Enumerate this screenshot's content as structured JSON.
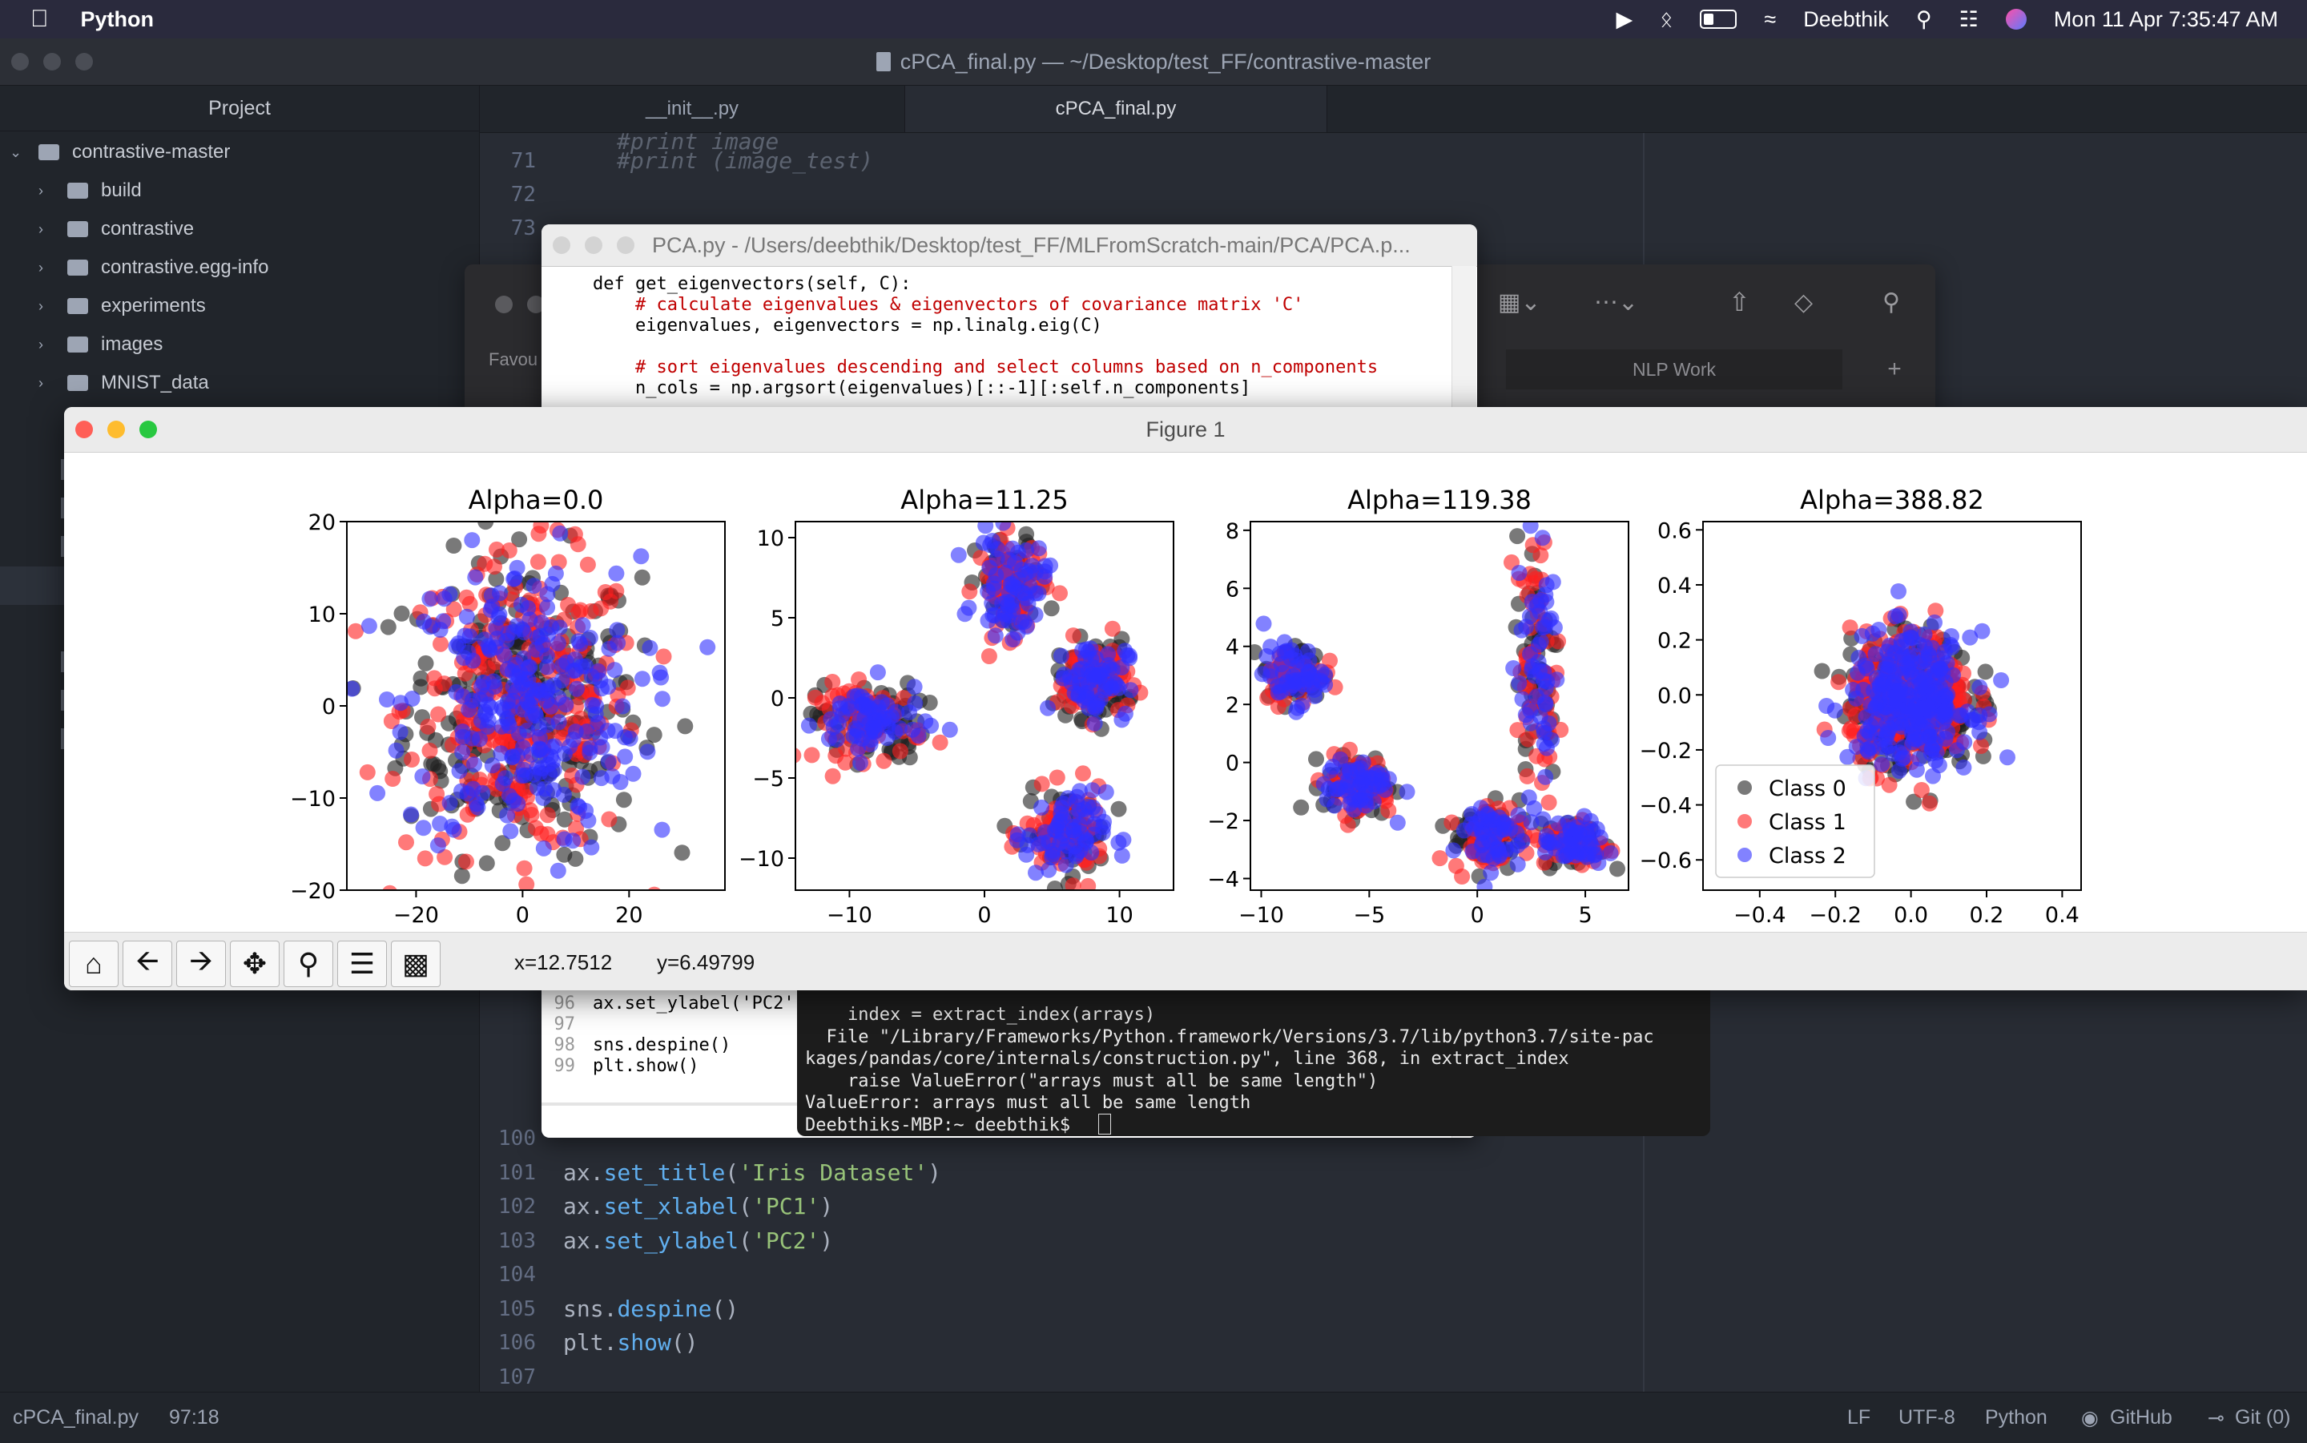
{
  "menubar": {
    "app_name": "Python",
    "user": "Deebthik",
    "datetime": "Mon 11 Apr  7:35:47 AM"
  },
  "atom": {
    "window_title": "cPCA_final.py — ~/Desktop/test_FF/contrastive-master",
    "sidebar_header": "Project",
    "root_folder": "contrastive-master",
    "folders": [
      "build",
      "contrastive",
      "contrastive.egg-info",
      "experiments",
      "images",
      "MNIST_data"
    ],
    "tabs": [
      "__init__.py",
      "cPCA_final.py"
    ],
    "top_lines": [
      {
        "num": "71",
        "code": "#print (image_test)"
      },
      {
        "num": "72",
        "code": ""
      },
      {
        "num": "73",
        "code": ""
      }
    ],
    "bottom_lines": [
      {
        "num": "100",
        "code": ""
      },
      {
        "num": "101",
        "code": "ax.set_title('Iris Dataset')"
      },
      {
        "num": "102",
        "code": "ax.set_xlabel('PC1')"
      },
      {
        "num": "103",
        "code": "ax.set_ylabel('PC2')"
      },
      {
        "num": "104",
        "code": ""
      },
      {
        "num": "105",
        "code": "sns.despine()"
      },
      {
        "num": "106",
        "code": "plt.show()"
      },
      {
        "num": "107",
        "code": ""
      }
    ],
    "status": {
      "file": "cPCA_final.py",
      "cursor": "97:18",
      "line_ending": "LF",
      "encoding": "UTF-8",
      "grammar": "Python",
      "github": "GitHub",
      "git": "Git (0)"
    }
  },
  "pca_window": {
    "title": "PCA.py - /Users/deebthik/Desktop/test_FF/MLFromScratch-main/PCA/PCA.p...",
    "lines": [
      "def get_eigenvectors(self, C):",
      "    # calculate eigenvalues & eigenvectors of covariance matrix 'C'",
      "    eigenvalues, eigenvectors = np.linalg.eig(C)",
      "",
      "    # sort eigenvalues descending and select columns based on n_components",
      "    n_cols = np.argsort(eigenvalues)[::-1][:self.n_components]"
    ],
    "bottom_gutter": [
      "96",
      "97",
      "98",
      "99"
    ],
    "bottom_lines": [
      "ax.set_ylabel('PC2')",
      "",
      "sns.despine()",
      "plt.show()"
    ]
  },
  "finder_window": {
    "sidebar_label": "Favou",
    "tab": "NLP Work"
  },
  "terminal": {
    "lines": [
      "    index = extract_index(arrays)",
      "  File \"/Library/Frameworks/Python.framework/Versions/3.7/lib/python3.7/site-pac",
      "kages/pandas/core/internals/construction.py\", line 368, in extract_index",
      "    raise ValueError(\"arrays must all be same length\")",
      "ValueError: arrays must all be same length",
      "Deebthiks-MBP:~ deebthik$ "
    ]
  },
  "figure": {
    "window_title": "Figure 1",
    "coords": {
      "x": "x=12.7512",
      "y": "y=6.49799"
    },
    "toolbar": [
      "home-icon",
      "back-icon",
      "forward-icon",
      "pan-icon",
      "zoom-icon",
      "configure-icon",
      "save-icon"
    ]
  },
  "chart_data": [
    {
      "type": "scatter",
      "title": "Alpha=0.0",
      "xlim": [
        -33,
        38
      ],
      "ylim": [
        -20,
        20
      ],
      "xticks": [
        -20,
        0,
        20
      ],
      "yticks": [
        -20,
        -10,
        0,
        10,
        20
      ],
      "tick_labels_x": [
        "−20",
        "0",
        "20"
      ],
      "tick_labels_y": [
        "−20",
        "−10",
        "0",
        "10",
        "20"
      ],
      "clusters": [
        {
          "cx": 0,
          "cy": 0,
          "sx": 11,
          "sy": 8
        }
      ]
    },
    {
      "type": "scatter",
      "title": "Alpha=11.25",
      "xlim": [
        -14,
        14
      ],
      "ylim": [
        -12,
        11
      ],
      "xticks": [
        -10,
        0,
        10
      ],
      "yticks": [
        -10,
        -5,
        0,
        5,
        10
      ],
      "tick_labels_x": [
        "−10",
        "0",
        "10"
      ],
      "tick_labels_y": [
        "−10",
        "−5",
        "0",
        "5",
        "10"
      ],
      "clusters": [
        {
          "cx": -8.5,
          "cy": -1.5,
          "sx": 2,
          "sy": 1.2
        },
        {
          "cx": 2,
          "cy": 7,
          "sx": 1.3,
          "sy": 1.5
        },
        {
          "cx": 8,
          "cy": 1.2,
          "sx": 1.3,
          "sy": 1.2
        },
        {
          "cx": 6,
          "cy": -8.5,
          "sx": 1.5,
          "sy": 1.3
        }
      ]
    },
    {
      "type": "scatter",
      "title": "Alpha=119.38",
      "xlim": [
        -10.5,
        7
      ],
      "ylim": [
        -4.4,
        8.3
      ],
      "xticks": [
        -10,
        -5,
        0,
        5
      ],
      "yticks": [
        -4,
        -2,
        0,
        2,
        4,
        6,
        8
      ],
      "tick_labels_x": [
        "−10",
        "−5",
        "0",
        "5"
      ],
      "tick_labels_y": [
        "−4",
        "−2",
        "0",
        "2",
        "4",
        "6",
        "8"
      ],
      "clusters": [
        {
          "cx": -8.5,
          "cy": 3,
          "sx": 0.7,
          "sy": 0.5
        },
        {
          "cx": -5.5,
          "cy": -0.8,
          "sx": 0.8,
          "sy": 0.5
        },
        {
          "cx": 0.5,
          "cy": -2.5,
          "sx": 0.8,
          "sy": 0.6
        },
        {
          "cx": 2.8,
          "cy": 3.5,
          "sx": 0.5,
          "sy": 2.2
        },
        {
          "cx": 4.5,
          "cy": -2.8,
          "sx": 0.7,
          "sy": 0.4
        }
      ]
    },
    {
      "type": "scatter",
      "title": "Alpha=388.82",
      "xlim": [
        -0.55,
        0.45
      ],
      "ylim": [
        -0.71,
        0.63
      ],
      "xticks": [
        -0.4,
        -0.2,
        0.0,
        0.2,
        0.4
      ],
      "yticks": [
        -0.6,
        -0.4,
        -0.2,
        0.0,
        0.2,
        0.4,
        0.6
      ],
      "tick_labels_x": [
        "−0.4",
        "−0.2",
        "0.0",
        "0.2",
        "0.4"
      ],
      "tick_labels_y": [
        "−0.6",
        "−0.4",
        "−0.2",
        "0.0",
        "0.2",
        "0.4",
        "0.6"
      ],
      "clusters": [
        {
          "cx": 0.0,
          "cy": -0.02,
          "sx": 0.08,
          "sy": 0.12
        }
      ],
      "legend": {
        "placement": "lower-left",
        "entries": [
          "Class 0",
          "Class 1",
          "Class 2"
        ]
      }
    }
  ],
  "series_colors": {
    "Class 0": "#202020",
    "Class 1": "#ff2020",
    "Class 2": "#2f2fff"
  }
}
